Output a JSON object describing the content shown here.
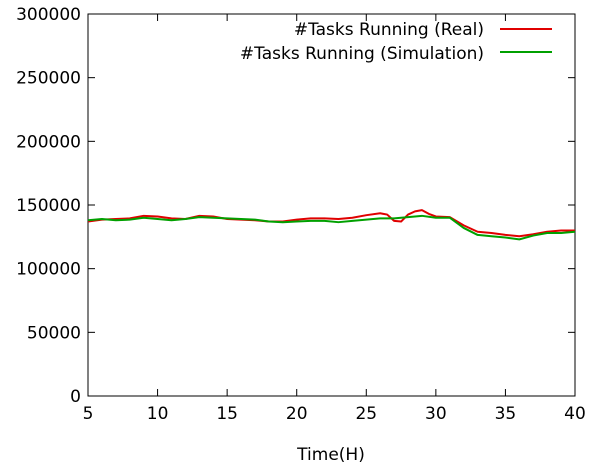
{
  "chart_data": {
    "type": "line",
    "title": "",
    "xlabel": "Time(H)",
    "ylabel": "",
    "xlim": [
      5,
      40
    ],
    "ylim": [
      0,
      300000
    ],
    "xticks": [
      5,
      10,
      15,
      20,
      25,
      30,
      35,
      40
    ],
    "yticks": [
      0,
      50000,
      100000,
      150000,
      200000,
      250000,
      300000
    ],
    "grid": false,
    "legend_position": "top-right",
    "series": [
      {
        "name": "#Tasks Running (Real)",
        "color": "#e00000",
        "x": [
          5,
          6,
          7,
          8,
          9,
          10,
          11,
          12,
          13,
          14,
          15,
          16,
          17,
          18,
          19,
          20,
          21,
          22,
          23,
          24,
          25,
          26,
          26.5,
          27,
          27.5,
          28,
          28.5,
          29,
          29.5,
          30,
          31,
          32,
          33,
          34,
          35,
          36,
          37,
          38,
          39,
          40
        ],
        "y": [
          137000,
          138500,
          139000,
          139500,
          141500,
          141000,
          139500,
          139000,
          141500,
          141000,
          139000,
          138500,
          138000,
          137000,
          137000,
          138500,
          139500,
          139500,
          139000,
          140000,
          142000,
          143500,
          142500,
          137500,
          137000,
          142500,
          145000,
          146000,
          143000,
          141000,
          140500,
          134000,
          129000,
          128000,
          126500,
          125500,
          127000,
          129000,
          130000,
          130000
        ]
      },
      {
        "name": "#Tasks Running (Simulation)",
        "color": "#00a000",
        "x": [
          5,
          6,
          7,
          8,
          9,
          10,
          11,
          12,
          13,
          14,
          15,
          16,
          17,
          18,
          19,
          20,
          21,
          22,
          23,
          24,
          25,
          26,
          27,
          28,
          29,
          30,
          31,
          32,
          33,
          34,
          35,
          36,
          37,
          38,
          39,
          40
        ],
        "y": [
          138000,
          139000,
          138000,
          138500,
          140000,
          139000,
          138000,
          139000,
          140500,
          140000,
          139500,
          139000,
          138500,
          137000,
          136500,
          137000,
          137500,
          137500,
          136500,
          137500,
          138500,
          139500,
          139500,
          140500,
          141500,
          140000,
          140000,
          132000,
          126500,
          125500,
          124500,
          123000,
          126000,
          128000,
          128000,
          129000
        ]
      }
    ]
  }
}
